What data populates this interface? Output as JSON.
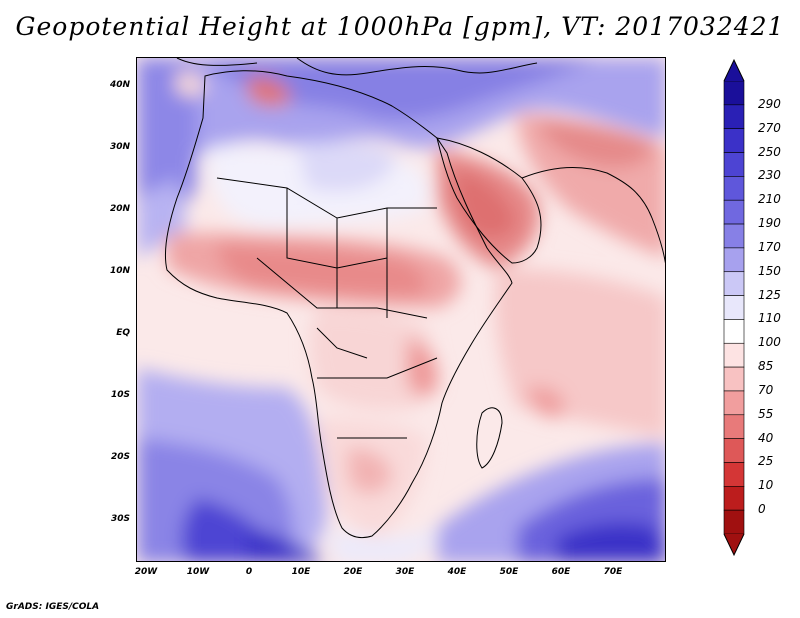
{
  "title": "Geopotential Height at 1000hPa [gpm], VT: 2017032421",
  "credit": "GrADS: IGES/COLA",
  "lat_labels": [
    "40N",
    "30N",
    "20N",
    "10N",
    "EQ",
    "10S",
    "20S",
    "30S"
  ],
  "lon_labels": [
    "20W",
    "10W",
    "0",
    "10E",
    "20E",
    "30E",
    "40E",
    "50E",
    "60E",
    "70E"
  ],
  "colorbar": {
    "levels": [
      "290",
      "270",
      "250",
      "230",
      "210",
      "190",
      "170",
      "150",
      "125",
      "110",
      "100",
      "85",
      "70",
      "55",
      "40",
      "25",
      "10",
      "0"
    ],
    "colors": [
      "#1a0f9a",
      "#2a20b5",
      "#3b31c8",
      "#4d44d3",
      "#5f57db",
      "#7068e0",
      "#8780e6",
      "#a7a1ee",
      "#cbc8f6",
      "#e8e7fb",
      "#ffffff",
      "#fde3e3",
      "#f8c2c2",
      "#f19e9e",
      "#e87a7a",
      "#de5858",
      "#d43636",
      "#bc1d1d",
      "#a01010"
    ]
  }
}
